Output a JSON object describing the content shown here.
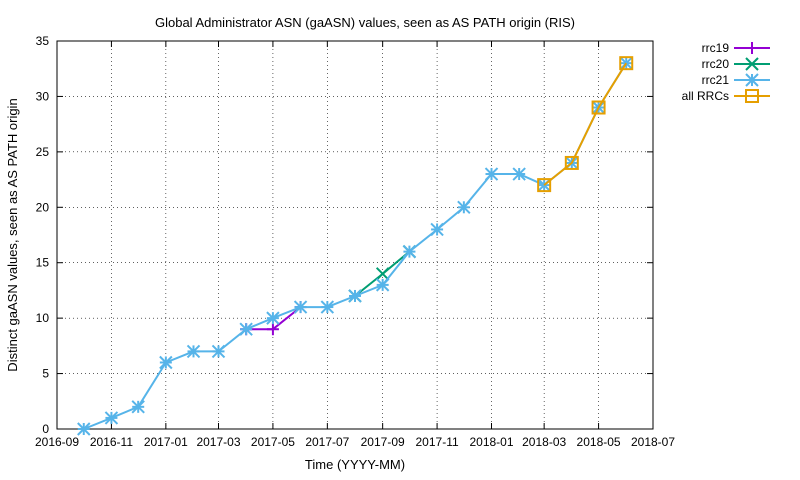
{
  "chart_data": {
    "type": "line",
    "title": "Global Administrator ASN (gaASN) values, seen as AS PATH origin (RIS)",
    "xlabel": "Time (YYYY-MM)",
    "ylabel": "Distinct gaASN values, seen as AS PATH origin",
    "x_scale": "time",
    "xlim": [
      "2016-09-01",
      "2018-07-01"
    ],
    "ylim": [
      0,
      35
    ],
    "x_ticks": [
      "2016-09",
      "2016-11",
      "2017-01",
      "2017-03",
      "2017-05",
      "2017-07",
      "2017-09",
      "2017-11",
      "2018-01",
      "2018-03",
      "2018-05",
      "2018-07"
    ],
    "y_ticks": [
      0,
      5,
      10,
      15,
      20,
      25,
      30,
      35
    ],
    "grid": true,
    "legend_position": "outside-top-right",
    "series": [
      {
        "name": "rrc19",
        "color": "#9400d3",
        "marker": "plus",
        "points": [
          [
            "2017-04-01",
            9
          ],
          [
            "2017-05-01",
            9
          ],
          [
            "2017-06-01",
            11
          ]
        ]
      },
      {
        "name": "rrc20",
        "color": "#009e73",
        "marker": "cross",
        "points": [
          [
            "2017-08-01",
            12
          ],
          [
            "2017-09-01",
            14
          ],
          [
            "2017-10-01",
            16
          ]
        ]
      },
      {
        "name": "rrc21",
        "color": "#56b4e9",
        "marker": "star",
        "points": [
          [
            "2016-10-01",
            0
          ],
          [
            "2016-11-01",
            1
          ],
          [
            "2016-12-01",
            2
          ],
          [
            "2017-01-01",
            6
          ],
          [
            "2017-02-01",
            7
          ],
          [
            "2017-03-01",
            7
          ],
          [
            "2017-04-01",
            9
          ],
          [
            "2017-05-01",
            10
          ],
          [
            "2017-06-01",
            11
          ],
          [
            "2017-07-01",
            11
          ],
          [
            "2017-08-01",
            12
          ],
          [
            "2017-09-01",
            13
          ],
          [
            "2017-10-01",
            16
          ],
          [
            "2017-11-01",
            18
          ],
          [
            "2017-12-01",
            20
          ],
          [
            "2018-01-01",
            23
          ],
          [
            "2018-02-01",
            23
          ],
          [
            "2018-03-01",
            22
          ],
          [
            "2018-04-01",
            24
          ],
          [
            "2018-05-01",
            29
          ],
          [
            "2018-06-01",
            33
          ]
        ]
      },
      {
        "name": "all RRCs",
        "color": "#e69f00",
        "marker": "square",
        "points": [
          [
            "2018-03-01",
            22
          ],
          [
            "2018-04-01",
            24
          ],
          [
            "2018-05-01",
            29
          ],
          [
            "2018-06-01",
            33
          ]
        ]
      }
    ]
  }
}
